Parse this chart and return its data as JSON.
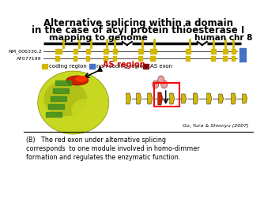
{
  "title_line1": "Alternative splicing within a domain",
  "title_line2": "in the case of acyl protein thioesterase I",
  "subtitle_left": "mapping to genome",
  "subtitle_right": "human chr 8",
  "track1_label": "NM_006330.2",
  "track2_label": "AF077199",
  "legend_items": [
    "coding region",
    "non-coding region",
    "AS exon"
  ],
  "legend_colors": [
    "#d4b800",
    "#4472c4",
    "#8b0000"
  ],
  "as_region_label": "AS region",
  "citation": "Go, Yura & Shionyu (2007)",
  "caption": "(B)   The red exon under alternative splicing\ncorresponds  to one module involved in homo-dimmer\nformation and regulates the enzymatic function.",
  "bg_color": "#ffffff",
  "title_color": "#000000",
  "as_region_color": "#cc0000",
  "genome_line_color": "#000000",
  "coding_color": "#d4b800",
  "noncoding_color": "#4472c4",
  "as_exon_color": "#8b1010"
}
